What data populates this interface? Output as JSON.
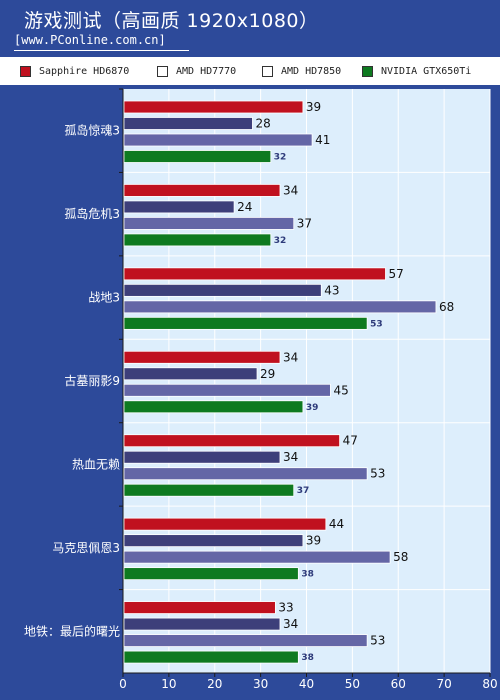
{
  "title": "游戏测试（高画质 1920x1080）",
  "subtitle": "[www.PConline.com.cn]",
  "chart_data": {
    "type": "bar",
    "orientation": "horizontal",
    "categories": [
      "孤岛惊魂3",
      "孤岛危机3",
      "战地3",
      "古墓丽影9",
      "热血无赖",
      "马克思佩恩3",
      "地铁：最后的曙光"
    ],
    "series": [
      {
        "name": "Sapphire HD6870",
        "color": "#c0111f",
        "values": [
          39,
          34,
          57,
          34,
          47,
          44,
          33
        ]
      },
      {
        "name": "AMD HD7770",
        "color": "#3d3f7a",
        "values": [
          28,
          24,
          43,
          29,
          34,
          39,
          34
        ]
      },
      {
        "name": "AMD HD7850",
        "color": "#6466a6",
        "values": [
          41,
          37,
          68,
          45,
          53,
          58,
          53
        ]
      },
      {
        "name": "NVIDIA GTX650Ti",
        "color": "#0e7a20",
        "values": [
          32,
          32,
          53,
          39,
          37,
          38,
          38
        ]
      }
    ],
    "xlim": [
      0,
      80
    ],
    "xticks": [
      0,
      10,
      20,
      30,
      40,
      50,
      60,
      70,
      80
    ],
    "grid": "vertical",
    "legend_position": "top"
  }
}
